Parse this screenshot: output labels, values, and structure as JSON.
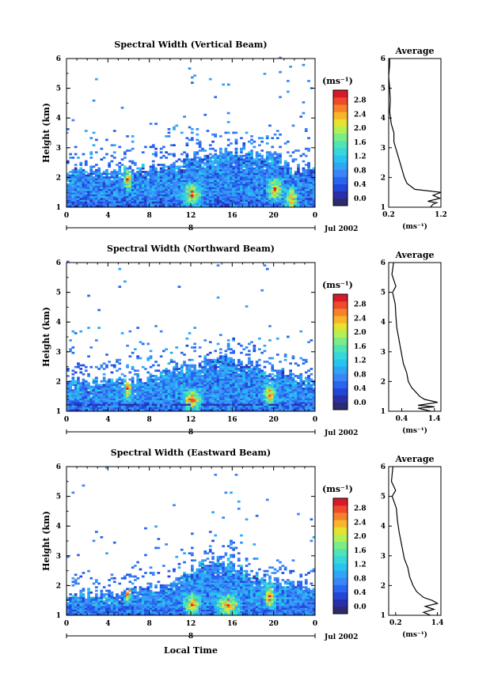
{
  "figure": {
    "x_axis_title": "Local Time",
    "date_label": "Jul 2002",
    "day_label": "8"
  },
  "chart_data": [
    {
      "type": "heatmap",
      "title": "Spectral Width (Vertical Beam)",
      "xlabel": "",
      "ylabel": "Height (km)",
      "xlim": [
        0,
        24
      ],
      "ylim": [
        1,
        6
      ],
      "xticks": [
        "0",
        "4",
        "8",
        "12",
        "16",
        "20",
        "0"
      ],
      "yticks": [
        "1",
        "2",
        "3",
        "4",
        "5",
        "6"
      ],
      "colorbar": {
        "unit_label": "(ms⁻¹)",
        "ticks": [
          "0.0",
          "0.4",
          "0.8",
          "1.2",
          "1.6",
          "2.0",
          "2.4",
          "2.8"
        ],
        "range": [
          0,
          3.0
        ]
      },
      "seed": 11,
      "features": {
        "base_top": [
          [
            0,
            2.25
          ],
          [
            4,
            2.15
          ],
          [
            8,
            2.3
          ],
          [
            10,
            2.4
          ],
          [
            12,
            2.65
          ],
          [
            14,
            2.85
          ],
          [
            16,
            2.8
          ],
          [
            18,
            2.75
          ],
          [
            20,
            2.7
          ],
          [
            22,
            2.3
          ],
          [
            24,
            2.2
          ]
        ],
        "hot": [
          [
            5.8,
            1.9,
            0.5,
            0.35
          ],
          [
            12,
            1.4,
            1.2,
            0.15
          ],
          [
            20,
            1.55,
            1.0,
            0.3
          ],
          [
            21.6,
            1.25,
            0.8,
            0.15
          ]
        ],
        "sparse_top": 6.0,
        "sparse_density": 0.02,
        "base_value": 0.7,
        "clear_band": null
      },
      "average": {
        "xlabel": "(ms⁻¹)",
        "xticks": [
          "0.2",
          "1.2"
        ],
        "xlim": [
          0.2,
          1.2
        ],
        "profile": [
          [
            1.0,
            1.0
          ],
          [
            1.1,
            1.05
          ],
          [
            1.15,
            1.12
          ],
          [
            1.2,
            0.95
          ],
          [
            1.3,
            1.18
          ],
          [
            1.4,
            1.05
          ],
          [
            1.5,
            1.2
          ],
          [
            1.6,
            0.7
          ],
          [
            1.8,
            0.55
          ],
          [
            2.0,
            0.5
          ],
          [
            2.3,
            0.45
          ],
          [
            2.6,
            0.4
          ],
          [
            2.9,
            0.35
          ],
          [
            3.2,
            0.3
          ],
          [
            3.5,
            0.3
          ],
          [
            3.8,
            0.25
          ],
          [
            4.2,
            0.22
          ],
          [
            4.6,
            0.23
          ],
          [
            5.0,
            0.22
          ],
          [
            5.4,
            0.2
          ],
          [
            5.8,
            0.22
          ],
          [
            6.0,
            0.22
          ]
        ]
      },
      "title_average": "Average"
    },
    {
      "type": "heatmap",
      "title": "Spectral Width (Northward Beam)",
      "xlabel": "",
      "ylabel": "Height (km)",
      "xlim": [
        0,
        24
      ],
      "ylim": [
        1,
        6
      ],
      "xticks": [
        "0",
        "4",
        "8",
        "12",
        "16",
        "20",
        "0"
      ],
      "yticks": [
        "1",
        "2",
        "3",
        "4",
        "5",
        "6"
      ],
      "colorbar": {
        "unit_label": "(ms⁻¹)",
        "ticks": [
          "0.0",
          "0.4",
          "0.8",
          "1.2",
          "1.6",
          "2.0",
          "2.4",
          "2.8"
        ],
        "range": [
          0,
          3.0
        ]
      },
      "seed": 29,
      "features": {
        "base_top": [
          [
            0,
            2.0
          ],
          [
            4,
            1.95
          ],
          [
            8,
            2.15
          ],
          [
            10,
            2.3
          ],
          [
            12,
            2.5
          ],
          [
            14,
            2.75
          ],
          [
            16,
            2.7
          ],
          [
            18,
            2.55
          ],
          [
            20,
            2.3
          ],
          [
            22,
            2.15
          ],
          [
            24,
            2.05
          ]
        ],
        "hot": [
          [
            5.8,
            1.75,
            0.45,
            0.35
          ],
          [
            12,
            1.35,
            1.2,
            0.15
          ],
          [
            19.5,
            1.55,
            0.7,
            0.3
          ]
        ],
        "sparse_top": 6.0,
        "sparse_density": 0.02,
        "base_value": 0.75,
        "clear_band": [
          1.15,
          1.22
        ]
      },
      "average": {
        "xlabel": "(ms⁻¹)",
        "xticks": [
          "0.4",
          "1.4"
        ],
        "xlim": [
          0.0,
          1.6
        ],
        "profile": [
          [
            1.0,
            1.3
          ],
          [
            1.1,
            0.9
          ],
          [
            1.15,
            1.4
          ],
          [
            1.2,
            0.9
          ],
          [
            1.3,
            1.5
          ],
          [
            1.4,
            1.1
          ],
          [
            1.5,
            0.95
          ],
          [
            1.8,
            0.7
          ],
          [
            2.0,
            0.6
          ],
          [
            2.3,
            0.55
          ],
          [
            2.6,
            0.45
          ],
          [
            2.9,
            0.4
          ],
          [
            3.2,
            0.35
          ],
          [
            3.5,
            0.3
          ],
          [
            3.8,
            0.25
          ],
          [
            4.2,
            0.22
          ],
          [
            4.6,
            0.2
          ],
          [
            5.0,
            0.12
          ],
          [
            5.2,
            0.22
          ],
          [
            5.6,
            0.1
          ],
          [
            6.0,
            0.15
          ]
        ]
      },
      "title_average": "Average"
    },
    {
      "type": "heatmap",
      "title": "Spectral Width (Eastward Beam)",
      "xlabel": "",
      "ylabel": "Height (km)",
      "xlim": [
        0,
        24
      ],
      "ylim": [
        1,
        6
      ],
      "xticks": [
        "0",
        "4",
        "8",
        "12",
        "16",
        "20",
        "0"
      ],
      "yticks": [
        "1",
        "2",
        "3",
        "4",
        "5",
        "6"
      ],
      "colorbar": {
        "unit_label": "(ms⁻¹)",
        "ticks": [
          "0.0",
          "0.4",
          "0.8",
          "1.2",
          "1.6",
          "2.0",
          "2.4",
          "2.8"
        ],
        "range": [
          0,
          3.0
        ]
      },
      "seed": 47,
      "features": {
        "base_top": [
          [
            0,
            1.65
          ],
          [
            4,
            1.7
          ],
          [
            8,
            1.85
          ],
          [
            10,
            2.0
          ],
          [
            11,
            2.4
          ],
          [
            13,
            2.65
          ],
          [
            15,
            2.85
          ],
          [
            17,
            2.5
          ],
          [
            19,
            2.2
          ],
          [
            21,
            2.1
          ],
          [
            23,
            2.0
          ],
          [
            24,
            1.95
          ]
        ],
        "hot": [
          [
            5.8,
            1.75,
            0.4,
            0.3
          ],
          [
            12,
            1.35,
            1.0,
            0.15
          ],
          [
            15.5,
            1.3,
            1.5,
            0.1
          ],
          [
            19.5,
            1.6,
            0.7,
            0.25
          ]
        ],
        "sparse_top": 6.0,
        "sparse_density": 0.01,
        "base_value": 0.75,
        "clear_band": null
      },
      "average": {
        "xlabel": "(ms⁻¹)",
        "xticks": [
          "0.2",
          "1.4"
        ],
        "xlim": [
          0.0,
          1.5
        ],
        "profile": [
          [
            1.0,
            1.2
          ],
          [
            1.1,
            1.0
          ],
          [
            1.2,
            1.3
          ],
          [
            1.3,
            1.05
          ],
          [
            1.4,
            1.4
          ],
          [
            1.5,
            1.25
          ],
          [
            1.6,
            1.0
          ],
          [
            1.8,
            0.8
          ],
          [
            2.0,
            0.7
          ],
          [
            2.3,
            0.6
          ],
          [
            2.6,
            0.55
          ],
          [
            2.9,
            0.45
          ],
          [
            3.2,
            0.4
          ],
          [
            3.5,
            0.35
          ],
          [
            3.8,
            0.3
          ],
          [
            4.2,
            0.25
          ],
          [
            4.6,
            0.22
          ],
          [
            5.0,
            0.1
          ],
          [
            5.2,
            0.2
          ],
          [
            5.5,
            0.08
          ],
          [
            6.0,
            0.12
          ]
        ]
      },
      "title_average": "Average"
    }
  ]
}
